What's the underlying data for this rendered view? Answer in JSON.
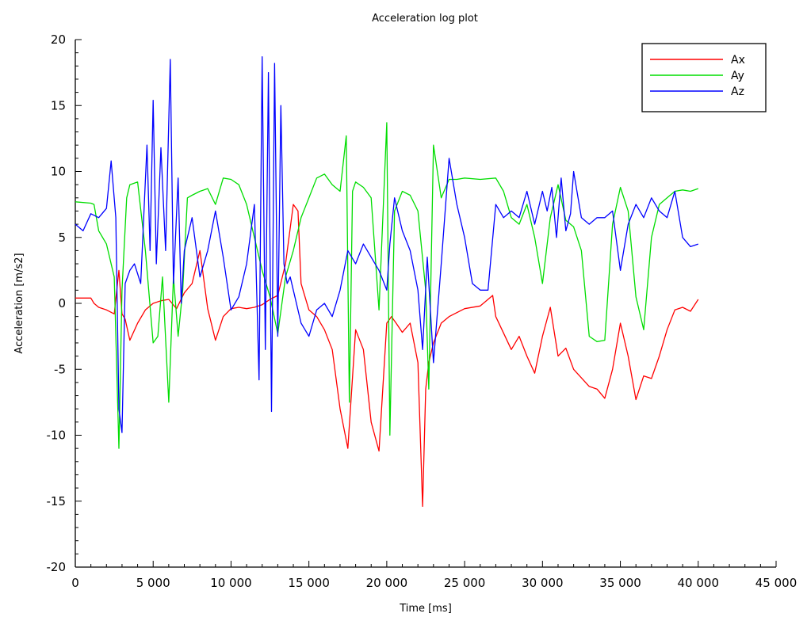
{
  "chart_data": {
    "type": "line",
    "title": "Acceleration log plot",
    "xlabel": "Time [ms]",
    "ylabel": "Acceleration [m/s2]",
    "xlim": [
      0,
      45000
    ],
    "ylim": [
      -20,
      20
    ],
    "x_ticks": [
      0,
      5000,
      10000,
      15000,
      20000,
      25000,
      30000,
      35000,
      40000,
      45000
    ],
    "x_tick_labels": [
      "0",
      "5 000",
      "10 000",
      "15 000",
      "20 000",
      "25 000",
      "30 000",
      "35 000",
      "40 000",
      "45 000"
    ],
    "y_ticks": [
      -20,
      -15,
      -10,
      -5,
      0,
      5,
      10,
      15,
      20
    ],
    "y_tick_labels": [
      "-20",
      "-15",
      "-10",
      "-5",
      "0",
      "5",
      "10",
      "15",
      "20"
    ],
    "grid": false,
    "legend_position": "top-right",
    "series": [
      {
        "name": "Ax",
        "color": "#ff0000",
        "x": [
          0,
          1000,
          1200,
          1500,
          2000,
          2500,
          2800,
          3000,
          3200,
          3500,
          4000,
          4500,
          5000,
          5500,
          6000,
          6500,
          7000,
          7500,
          8000,
          8500,
          9000,
          9500,
          10000,
          10500,
          11000,
          11500,
          12000,
          12500,
          13000,
          13500,
          14000,
          14300,
          14500,
          15000,
          15500,
          16000,
          16500,
          17000,
          17500,
          18000,
          18500,
          19000,
          19500,
          20000,
          20300,
          20600,
          21000,
          21500,
          22000,
          22300,
          22500,
          22700,
          23000,
          23500,
          24000,
          25000,
          26000,
          26800,
          27000,
          28000,
          28500,
          29000,
          29500,
          30000,
          30500,
          31000,
          31500,
          32000,
          33000,
          33500,
          34000,
          34500,
          35000,
          35500,
          36000,
          36500,
          37000,
          37500,
          38000,
          38500,
          39000,
          39500,
          40000
        ],
        "y": [
          0.4,
          0.4,
          0.0,
          -0.3,
          -0.5,
          -0.8,
          2.5,
          -0.8,
          -1.2,
          -2.8,
          -1.5,
          -0.5,
          0.0,
          0.2,
          0.3,
          -0.4,
          0.8,
          1.5,
          4.0,
          -0.4,
          -2.8,
          -1.0,
          -0.4,
          -0.3,
          -0.4,
          -0.3,
          -0.1,
          0.3,
          0.6,
          3.0,
          7.5,
          7.0,
          1.5,
          -0.5,
          -1.0,
          -2.0,
          -3.5,
          -8.0,
          -11.0,
          -2.0,
          -3.5,
          -9.0,
          -11.2,
          -1.5,
          -1.0,
          -1.5,
          -2.2,
          -1.5,
          -4.5,
          -15.4,
          -6.5,
          -4.5,
          -3.0,
          -1.5,
          -1.0,
          -0.4,
          -0.2,
          0.6,
          -1.0,
          -3.5,
          -2.5,
          -4.0,
          -5.3,
          -2.5,
          -0.3,
          -4.0,
          -3.4,
          -5.0,
          -6.3,
          -6.5,
          -7.2,
          -5.0,
          -1.5,
          -4.0,
          -7.3,
          -5.5,
          -5.7,
          -4.0,
          -2.0,
          -0.5,
          -0.3,
          -0.6,
          0.3
        ]
      },
      {
        "name": "Ay",
        "color": "#00dd00",
        "x": [
          0,
          1000,
          1200,
          1500,
          2000,
          2500,
          2800,
          3000,
          3300,
          3500,
          4000,
          4500,
          5000,
          5300,
          5600,
          6000,
          6300,
          6600,
          6900,
          7200,
          7500,
          8000,
          8500,
          9000,
          9500,
          10000,
          10500,
          11000,
          11500,
          12000,
          12500,
          13000,
          13500,
          14000,
          14500,
          15000,
          15500,
          16000,
          16500,
          17000,
          17400,
          17600,
          17800,
          18000,
          18500,
          19000,
          19500,
          20000,
          20200,
          20500,
          21000,
          21500,
          22000,
          22500,
          22700,
          23000,
          23500,
          24000,
          24500,
          25000,
          26000,
          27000,
          27500,
          28000,
          28500,
          29000,
          29500,
          30000,
          30500,
          31000,
          31500,
          32000,
          32500,
          33000,
          33500,
          34000,
          34500,
          35000,
          35500,
          36000,
          36500,
          37000,
          37500,
          38000,
          38500,
          39000,
          39500,
          40000
        ],
        "y": [
          7.7,
          7.6,
          7.5,
          5.5,
          4.5,
          2.0,
          -11.0,
          1.0,
          8.0,
          9.0,
          9.2,
          4.0,
          -3.0,
          -2.5,
          2.0,
          -7.5,
          2.0,
          -2.5,
          1.0,
          8.0,
          8.2,
          8.5,
          8.7,
          7.5,
          9.5,
          9.4,
          9.0,
          7.5,
          5.0,
          2.5,
          0.5,
          -2.3,
          2.0,
          4.0,
          6.5,
          8.0,
          9.5,
          9.8,
          9.0,
          8.5,
          12.7,
          -7.5,
          8.5,
          9.2,
          8.8,
          8.0,
          -0.5,
          13.7,
          -10.0,
          7.0,
          8.5,
          8.2,
          7.0,
          1.0,
          -6.5,
          12.0,
          8.0,
          9.4,
          9.4,
          9.5,
          9.4,
          9.5,
          8.5,
          6.5,
          6.0,
          7.5,
          5.0,
          1.5,
          6.5,
          9.0,
          6.3,
          5.8,
          4.0,
          -2.5,
          -2.9,
          -2.8,
          6.0,
          8.8,
          7.0,
          0.5,
          -2.0,
          5.0,
          7.5,
          8.0,
          8.5,
          8.6,
          8.5,
          8.7
        ]
      },
      {
        "name": "Az",
        "color": "#0000ff",
        "x": [
          0,
          500,
          1000,
          1500,
          2000,
          2300,
          2600,
          2800,
          3000,
          3200,
          3500,
          3800,
          4200,
          4600,
          4800,
          5000,
          5200,
          5500,
          5800,
          6100,
          6300,
          6600,
          6800,
          7000,
          7500,
          8000,
          8500,
          9000,
          9500,
          10000,
          10500,
          11000,
          11500,
          11800,
          12000,
          12200,
          12400,
          12600,
          12800,
          13000,
          13200,
          13400,
          13600,
          13800,
          14000,
          14500,
          15000,
          15500,
          16000,
          16500,
          17000,
          17500,
          18000,
          18500,
          19000,
          19500,
          20000,
          20200,
          20500,
          21000,
          21500,
          22000,
          22300,
          22600,
          23000,
          23500,
          24000,
          24500,
          25000,
          25500,
          26000,
          26500,
          27000,
          27500,
          28000,
          28500,
          29000,
          29500,
          30000,
          30300,
          30600,
          30900,
          31200,
          31500,
          31800,
          32000,
          32500,
          33000,
          33500,
          34000,
          34500,
          35000,
          35500,
          36000,
          36500,
          37000,
          37500,
          38000,
          38500,
          39000,
          39500,
          40000
        ],
        "y": [
          6.0,
          5.5,
          6.8,
          6.5,
          7.2,
          10.8,
          6.5,
          -8.0,
          -9.8,
          1.5,
          2.5,
          3.0,
          1.5,
          12.0,
          4.0,
          15.4,
          3.0,
          11.8,
          4.0,
          18.5,
          1.5,
          9.5,
          0.0,
          4.0,
          6.5,
          2.0,
          4.0,
          7.0,
          3.5,
          -0.5,
          0.5,
          3.0,
          7.5,
          -5.8,
          18.7,
          -3.5,
          17.5,
          -8.2,
          18.2,
          -2.5,
          15.0,
          3.0,
          1.5,
          2.0,
          1.0,
          -1.5,
          -2.5,
          -0.5,
          0.0,
          -1.0,
          1.0,
          4.0,
          3.0,
          4.5,
          3.5,
          2.5,
          1.0,
          4.5,
          8.0,
          5.5,
          4.0,
          1.0,
          -3.5,
          3.5,
          -4.5,
          3.0,
          11.0,
          7.5,
          5.0,
          1.5,
          1.0,
          1.0,
          7.5,
          6.5,
          7.0,
          6.5,
          8.5,
          6.0,
          8.5,
          7.0,
          8.8,
          5.0,
          9.5,
          5.5,
          6.8,
          10.0,
          6.5,
          6.0,
          6.5,
          6.5,
          7.0,
          2.5,
          6.0,
          7.5,
          6.5,
          8.0,
          7.0,
          6.5,
          8.5,
          5.0,
          4.3,
          4.5
        ]
      }
    ]
  }
}
